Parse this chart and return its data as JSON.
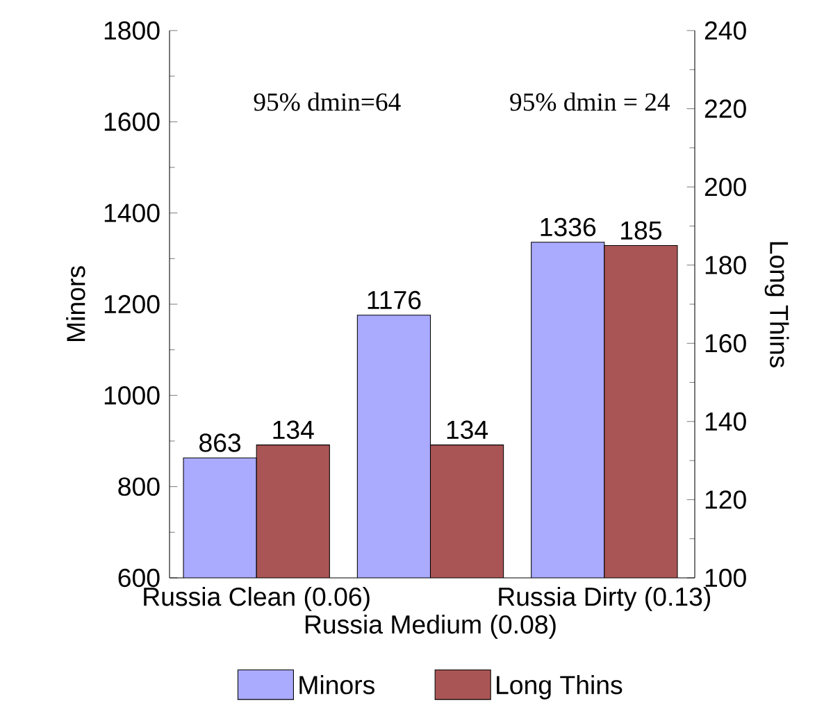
{
  "chart_data": {
    "type": "bar",
    "categories": [
      "Russia Clean (0.06)",
      "Russia Medium (0.08)",
      "Russia Dirty (0.13)"
    ],
    "series": [
      {
        "name": "Minors",
        "color": "#aaaaff",
        "values": [
          863,
          1176,
          1336
        ]
      },
      {
        "name": "Long Thins",
        "color": "#aa5555",
        "values": [
          134,
          134,
          185
        ],
        "axis": "y2"
      }
    ],
    "ylabel": "Minors",
    "y2label": "Long Thins",
    "ylim": [
      600,
      1800
    ],
    "yticks": [
      600,
      800,
      1000,
      1200,
      1400,
      1600,
      1800
    ],
    "y2lim": [
      100,
      240
    ],
    "y2ticks": [
      100,
      120,
      140,
      160,
      180,
      200,
      220,
      240
    ],
    "annotations": [
      "95% dmin=64",
      "95% dmin = 24"
    ],
    "data_labels": true,
    "legend": "bottom",
    "grid": false
  }
}
